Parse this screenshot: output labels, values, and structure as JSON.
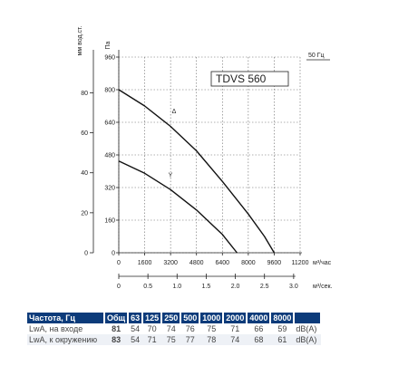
{
  "chart_data": {
    "type": "line",
    "title": "",
    "model_label": "TDVS 560",
    "frequency_label": "50 Гц",
    "y_label_left": "мм вод.ст.",
    "y_label_pa": "Па",
    "x_label_hour": "м³/час",
    "x_label_sec": "м³/сек.",
    "xlim": [
      0,
      11200
    ],
    "ylim": [
      0,
      960
    ],
    "x_ticks": [
      "0",
      "1600",
      "3200",
      "4800",
      "6400",
      "8000",
      "9600",
      "11200"
    ],
    "y_ticks_pa": [
      "0",
      "160",
      "320",
      "480",
      "640",
      "800",
      "960"
    ],
    "y_ticks_mm": [
      "0",
      "20",
      "40",
      "60",
      "80"
    ],
    "x_ticks_sec": [
      "0",
      "0.5",
      "1.0",
      "1.5",
      "2.0",
      "2.5",
      "3.0"
    ],
    "series": [
      {
        "name": "Δ",
        "x": [
          0,
          1600,
          3200,
          4800,
          6400,
          8000,
          9000,
          9600
        ],
        "y": [
          800,
          720,
          620,
          500,
          350,
          190,
          80,
          0
        ]
      },
      {
        "name": "Y",
        "x": [
          0,
          1600,
          3200,
          4800,
          6400,
          7300
        ],
        "y": [
          450,
          390,
          310,
          210,
          90,
          0
        ]
      }
    ],
    "grid": true
  },
  "sound_table": {
    "headers": [
      "Частота, Гц",
      "Общ",
      "63",
      "125",
      "250",
      "500",
      "1000",
      "2000",
      "4000",
      "8000",
      ""
    ],
    "rows": [
      {
        "label": "LwA, на входе",
        "total": "81",
        "values": [
          "54",
          "70",
          "74",
          "76",
          "75",
          "71",
          "66",
          "59"
        ],
        "unit": "dB(A)"
      },
      {
        "label": "LwA, к окружению",
        "total": "83",
        "values": [
          "54",
          "71",
          "75",
          "77",
          "78",
          "74",
          "68",
          "61"
        ],
        "unit": "dB(A)"
      }
    ]
  }
}
